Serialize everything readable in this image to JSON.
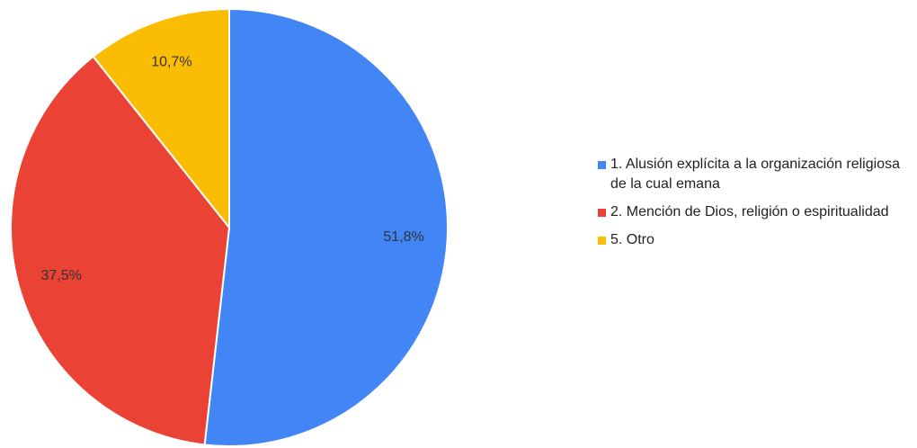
{
  "chart_data": {
    "type": "pie",
    "categories": [
      "1. Alusión explícita a la organización religiosa de la cual emana",
      "2. Mención de Dios, religión o espiritualidad",
      "5. Otro"
    ],
    "values": [
      51.8,
      37.5,
      10.7
    ],
    "value_labels": [
      "51,8%",
      "37,5%",
      "10,7%"
    ],
    "colors": [
      "#4285f4",
      "#ea4335",
      "#fbbc04"
    ],
    "legend": "right"
  }
}
